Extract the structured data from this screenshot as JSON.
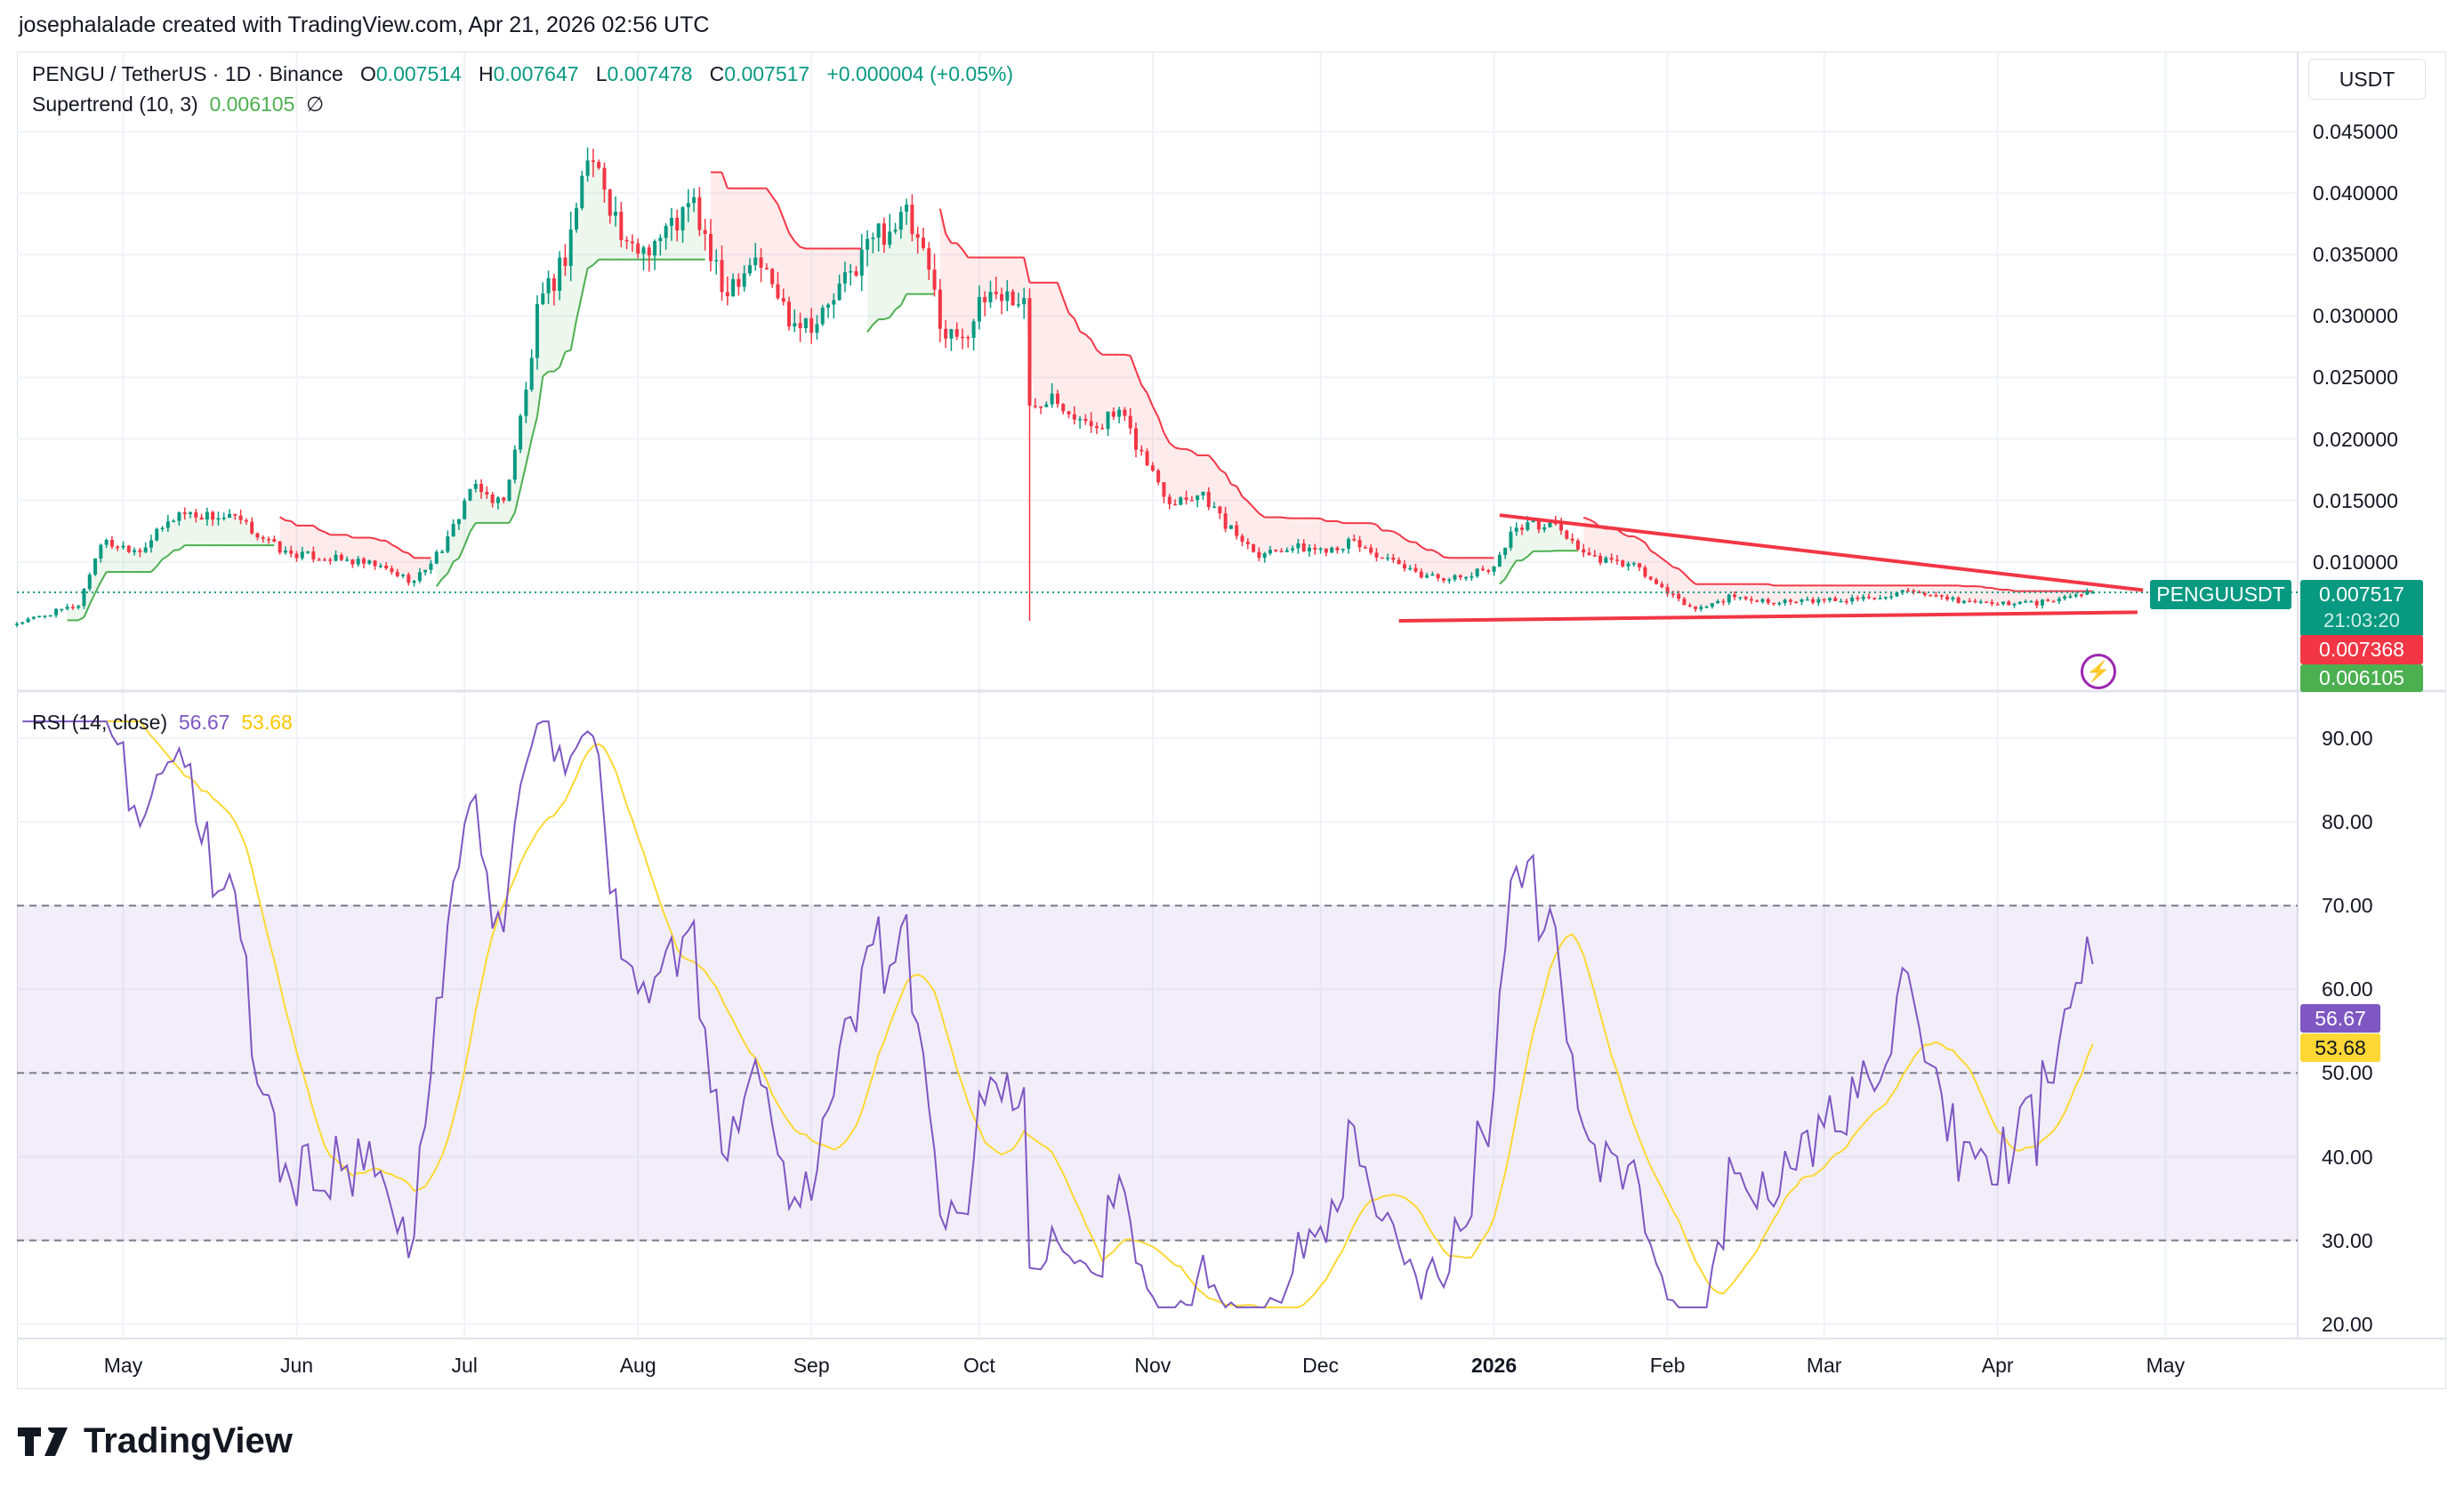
{
  "credit": "josephalalade created with TradingView.com, Apr 21, 2026 02:56 UTC",
  "currency_button": "USDT",
  "legend": {
    "symbol": "PENGU / TetherUS · 1D · Binance",
    "o_label": "O",
    "o": "0.007514",
    "h_label": "H",
    "h": "0.007647",
    "l_label": "L",
    "l": "0.007478",
    "c_label": "C",
    "c": "0.007517",
    "change": "+0.000004 (+0.05%)",
    "supertrend_name": "Supertrend (10, 3)",
    "supertrend_value": "0.006105",
    "supertrend_icon": "∅"
  },
  "rsi_legend": {
    "name": "RSI (14, close)",
    "rsi": "56.67",
    "ma": "53.68"
  },
  "price_tags": {
    "symbol": "PENGUUSDT",
    "last": "0.007517",
    "countdown": "21:03:20",
    "supertrend_down": "0.007368",
    "supertrend_up": "0.006105"
  },
  "rsi_tags": {
    "rsi": "56.67",
    "ma": "53.68"
  },
  "logo_text": "TradingView",
  "colors": {
    "up": "#089981",
    "down": "#f23645",
    "st_up": "#4caf50",
    "st_down": "#f23645",
    "rsi": "#7e57c2",
    "rsi_ma": "#fdd835",
    "trendline": "#f23645"
  },
  "chart_data": [
    {
      "type": "candlestick",
      "title": "PENGU / TetherUS · 1D · Binance",
      "start_date": "2025-04-12",
      "x_unit": "days since start",
      "ylabel": "USDT",
      "ylim": [
        0.003,
        0.047
      ],
      "y_ticks": [
        "0.010000",
        "0.015000",
        "0.020000",
        "0.025000",
        "0.030000",
        "0.035000",
        "0.040000",
        "0.045000"
      ],
      "x_ticks": [
        {
          "label": "May",
          "day": 19
        },
        {
          "label": "Jun",
          "day": 50
        },
        {
          "label": "Jul",
          "day": 80
        },
        {
          "label": "Aug",
          "day": 111
        },
        {
          "label": "Sep",
          "day": 142
        },
        {
          "label": "Oct",
          "day": 172
        },
        {
          "label": "Nov",
          "day": 203
        },
        {
          "label": "Dec",
          "day": 233
        },
        {
          "label": "2026",
          "day": 264
        },
        {
          "label": "Feb",
          "day": 295
        },
        {
          "label": "Mar",
          "day": 323
        },
        {
          "label": "Apr",
          "day": 354
        },
        {
          "label": "May",
          "day": 384
        }
      ],
      "close_keypoints": [
        [
          0,
          0.005
        ],
        [
          11,
          0.0065
        ],
        [
          15,
          0.0116
        ],
        [
          22,
          0.011
        ],
        [
          29,
          0.014
        ],
        [
          39,
          0.0135
        ],
        [
          48,
          0.0107
        ],
        [
          56,
          0.0103
        ],
        [
          64,
          0.0097
        ],
        [
          71,
          0.0084
        ],
        [
          77,
          0.0117
        ],
        [
          81,
          0.016
        ],
        [
          87,
          0.0148
        ],
        [
          91,
          0.0238
        ],
        [
          93,
          0.03
        ],
        [
          98,
          0.035
        ],
        [
          102,
          0.043
        ],
        [
          105,
          0.041
        ],
        [
          109,
          0.035
        ],
        [
          115,
          0.0365
        ],
        [
          121,
          0.039
        ],
        [
          126,
          0.032
        ],
        [
          132,
          0.035
        ],
        [
          138,
          0.03
        ],
        [
          143,
          0.0295
        ],
        [
          149,
          0.0334
        ],
        [
          153,
          0.0365
        ],
        [
          159,
          0.038
        ],
        [
          163,
          0.0334
        ],
        [
          166,
          0.0283
        ],
        [
          170,
          0.029
        ],
        [
          174,
          0.032
        ],
        [
          178,
          0.0315
        ],
        [
          180,
          0.031
        ],
        [
          181,
          0.0225
        ],
        [
          185,
          0.024
        ],
        [
          191,
          0.021
        ],
        [
          197,
          0.022
        ],
        [
          202,
          0.018
        ],
        [
          206,
          0.015
        ],
        [
          212,
          0.0156
        ],
        [
          216,
          0.013
        ],
        [
          222,
          0.0107
        ],
        [
          227,
          0.0112
        ],
        [
          233,
          0.011
        ],
        [
          239,
          0.0116
        ],
        [
          244,
          0.0103
        ],
        [
          250,
          0.009
        ],
        [
          258,
          0.0086
        ],
        [
          264,
          0.0097
        ],
        [
          268,
          0.013
        ],
        [
          275,
          0.013
        ],
        [
          281,
          0.0103
        ],
        [
          289,
          0.0097
        ],
        [
          295,
          0.0074
        ],
        [
          300,
          0.0061
        ],
        [
          306,
          0.0071
        ],
        [
          317,
          0.0067
        ],
        [
          329,
          0.007
        ],
        [
          337,
          0.0075
        ],
        [
          345,
          0.0069
        ],
        [
          354,
          0.0066
        ],
        [
          362,
          0.0067
        ],
        [
          369,
          0.0074
        ],
        [
          371,
          0.007517
        ]
      ],
      "flash_wick": {
        "day": 181,
        "low": 0.0052
      },
      "last_candle": {
        "open": 0.007514,
        "high": 0.007647,
        "low": 0.007478,
        "close": 0.007517
      },
      "indicators": {
        "supertrend": {
          "period": 10,
          "multiplier": 3
        }
      },
      "trendlines": [
        {
          "name": "descending-resistance",
          "from": [
            265,
            0.0138
          ],
          "to": [
            380,
            0.0077
          ]
        },
        {
          "name": "horizontal-support",
          "from": [
            247,
            0.0052
          ],
          "to": [
            379,
            0.0059
          ]
        }
      ]
    },
    {
      "type": "line",
      "title": "RSI (14, close)",
      "ylim": [
        15,
        95
      ],
      "y_ticks": [
        "20.00",
        "30.00",
        "40.00",
        "50.00",
        "60.00",
        "70.00",
        "80.00",
        "90.00"
      ],
      "bands": {
        "upper": 70,
        "middle": 50,
        "lower": 30
      },
      "series": [
        {
          "name": "RSI",
          "period": 14,
          "last": 56.67
        },
        {
          "name": "RSI-based MA",
          "period": 14,
          "last": 53.68
        }
      ]
    }
  ]
}
